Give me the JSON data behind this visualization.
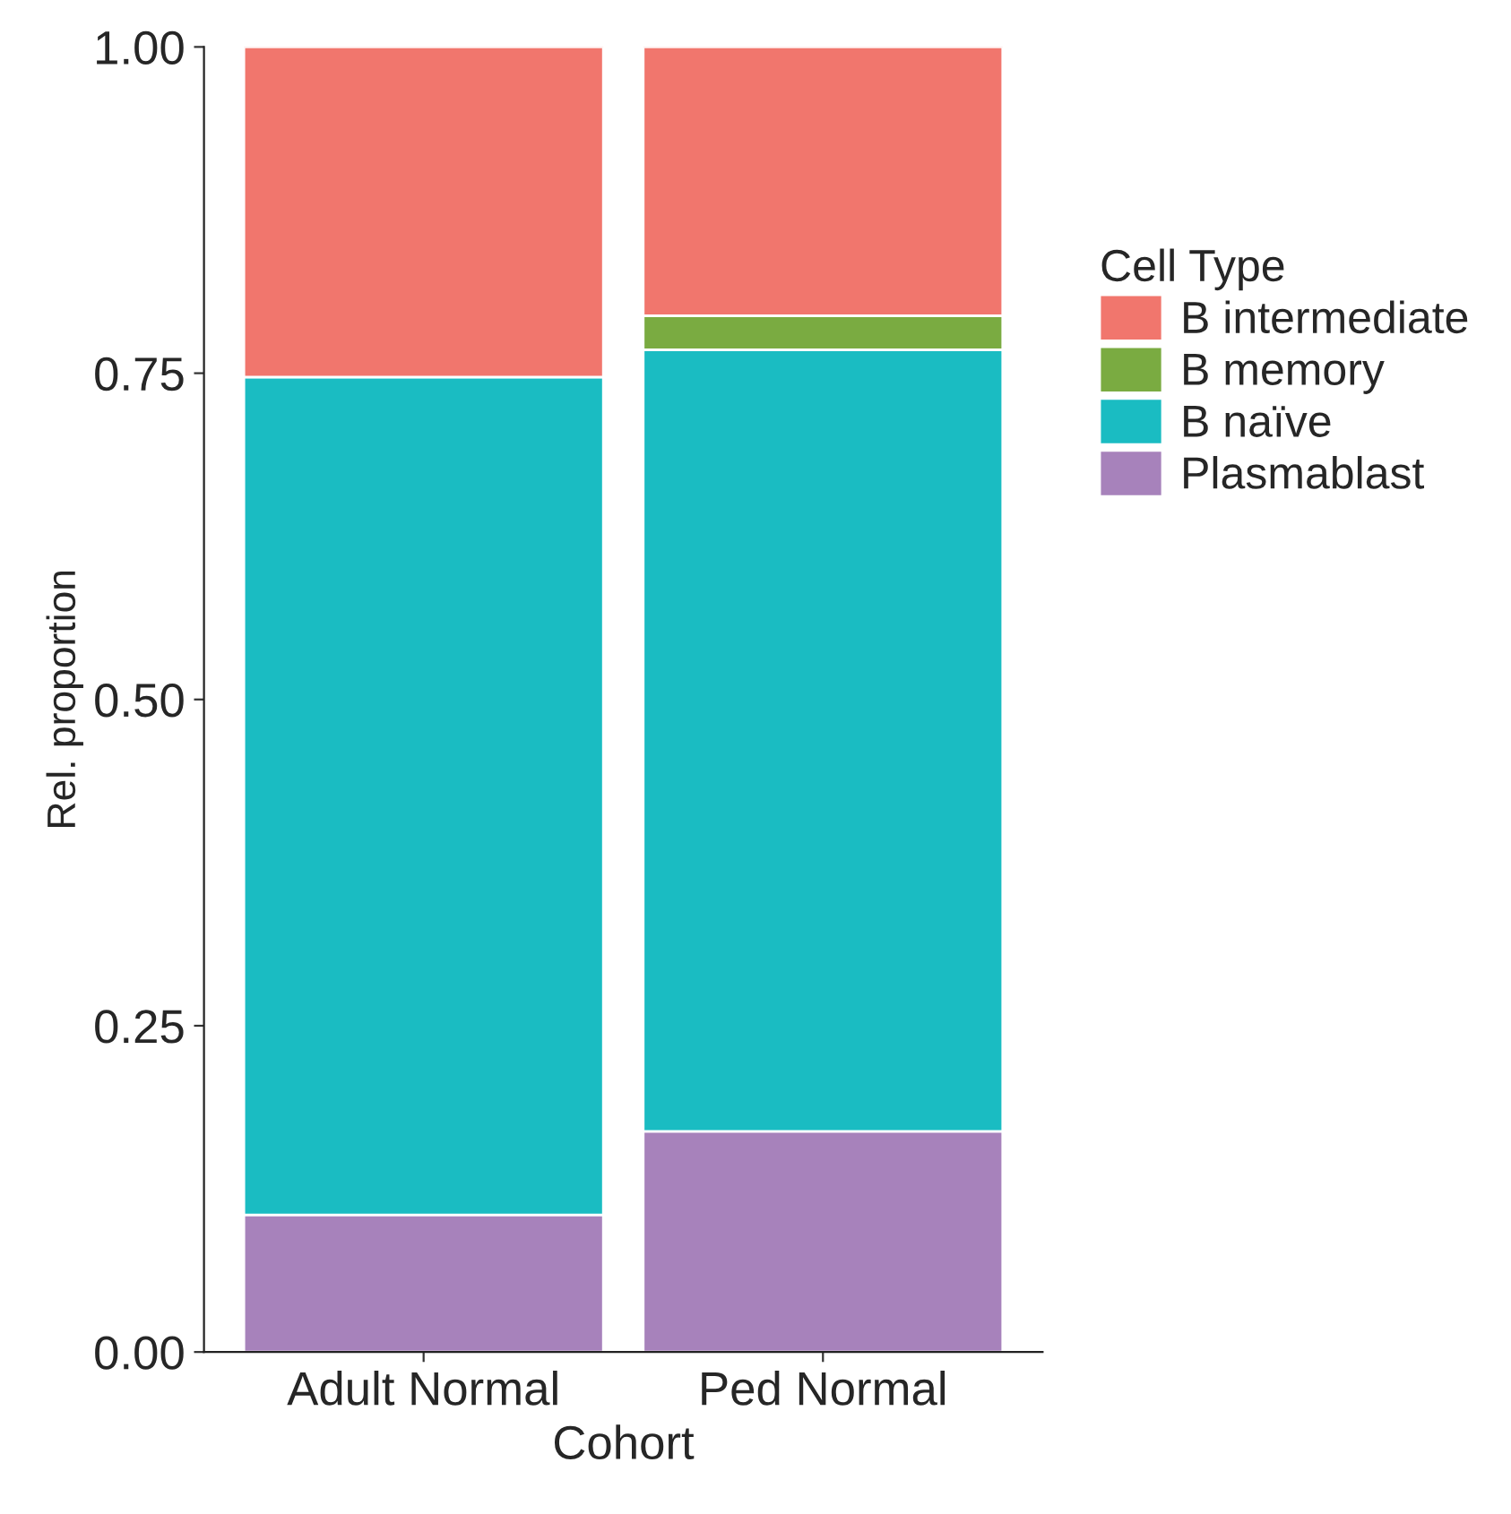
{
  "chart_data": {
    "type": "bar",
    "stacked": true,
    "xlabel": "Cohort",
    "ylabel": "Rel. proportion",
    "legend_title": "Cell Type",
    "legend": "right",
    "grid": false,
    "categories": [
      "Adult Normal",
      "Ped Normal"
    ],
    "ylim": [
      0,
      1
    ],
    "yticks": [
      {
        "value": 0,
        "label": "0.00"
      },
      {
        "value": 0.25,
        "label": "0.25"
      },
      {
        "value": 0.5,
        "label": "0.50"
      },
      {
        "value": 0.75,
        "label": "0.75"
      },
      {
        "value": 1,
        "label": "1.00"
      }
    ],
    "series": [
      {
        "name": "Plasmablast",
        "color": "#a782bb",
        "values": [
          0.105,
          0.169
        ]
      },
      {
        "name": "B naïve",
        "color": "#1abcc2",
        "values": [
          0.642,
          0.599
        ]
      },
      {
        "name": "B memory",
        "color": "#7aab41",
        "values": [
          0,
          0.026
        ]
      },
      {
        "name": "B intermediate",
        "color": "#f1766d",
        "values": [
          0.253,
          0.206
        ]
      }
    ]
  }
}
